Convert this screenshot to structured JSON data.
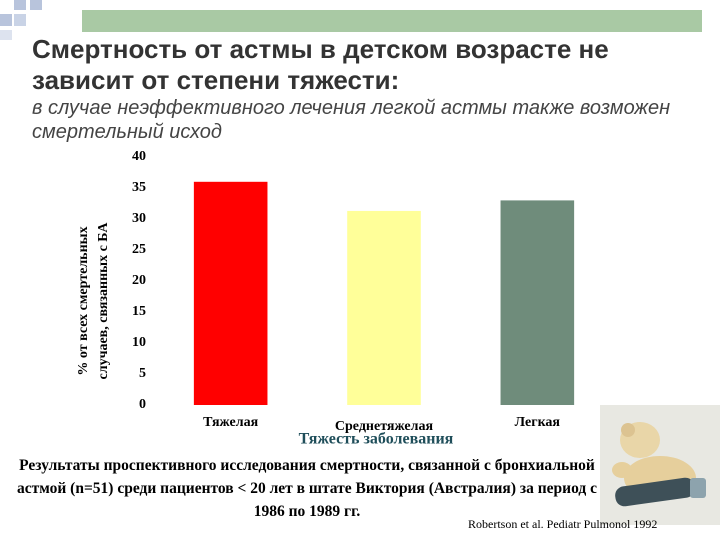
{
  "chart_data": {
    "type": "bar",
    "title": "Смертность от астмы в детском возрасте не зависит от степени тяжести:",
    "subtitle": "в случае неэффективного лечения легкой астмы также возможен смертельный исход",
    "y_label": [
      "% от всех смертельных",
      "случаев, связанных с БА"
    ],
    "x_label": "Тяжесть заболевания",
    "categories": [
      "Тяжелая",
      "Среднетяжелая",
      "Легкая"
    ],
    "values": [
      36,
      31.3,
      33
    ],
    "colors": [
      "#ff0000",
      "#ffff99",
      "#6f8c7b"
    ],
    "ylim": [
      0,
      40
    ],
    "yticks": [
      0,
      5,
      10,
      15,
      20,
      25,
      30,
      35,
      40
    ],
    "grid": false,
    "caption": "Результаты проспективного исследования смертности, связанной с бронхиальной астмой (n=51) среди пациентов < 20 лет в штате Виктория (Австралия) за период с 1986 по 1989 гг.",
    "source": "Robertson et al. Pediatr Pulmonol 1992"
  }
}
